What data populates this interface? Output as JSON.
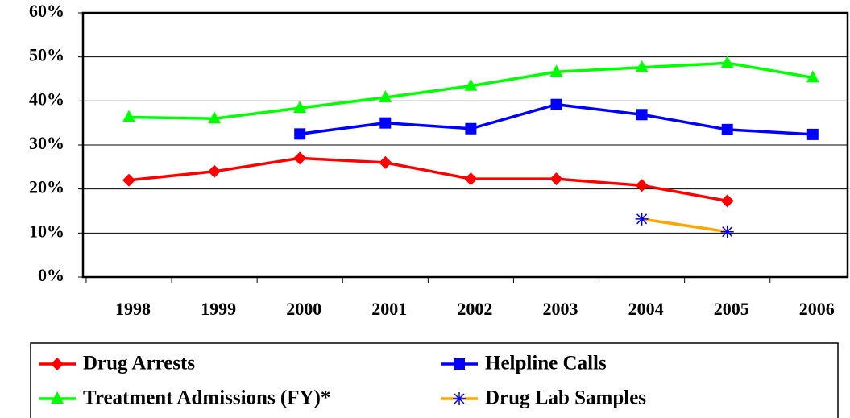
{
  "chart_data": {
    "type": "line",
    "categories": [
      "1998",
      "1999",
      "2000",
      "2001",
      "2002",
      "2003",
      "2004",
      "2005",
      "2006"
    ],
    "series": [
      {
        "name": "Drug Arrests",
        "color": "#ff0000",
        "marker": "diamond",
        "marker_color": "#ff0000",
        "values": [
          22,
          24,
          27,
          26,
          22.3,
          22.3,
          20.8,
          17.3,
          null
        ]
      },
      {
        "name": "Helpline Calls",
        "color": "#0000ff",
        "marker": "square",
        "marker_color": "#0000ff",
        "values": [
          null,
          null,
          32.5,
          35,
          33.7,
          39.2,
          36.9,
          33.5,
          32.4
        ]
      },
      {
        "name": "Treatment Admissions (FY)*",
        "color": "#00ff00",
        "marker": "triangle",
        "marker_color": "#00ff00",
        "values": [
          36.3,
          36,
          38.4,
          40.8,
          43.4,
          46.6,
          47.6,
          48.6,
          45.3
        ]
      },
      {
        "name": "Drug Lab Samples",
        "color": "#ffa500",
        "marker": "star",
        "marker_color": "#0000ff",
        "values": [
          null,
          null,
          null,
          null,
          null,
          null,
          13.2,
          10.3,
          null
        ]
      }
    ],
    "ylim": [
      0,
      60
    ],
    "yticks": [
      {
        "value": 0,
        "label": "0%"
      },
      {
        "value": 10,
        "label": "10%"
      },
      {
        "value": 20,
        "label": "20%"
      },
      {
        "value": 30,
        "label": "30%"
      },
      {
        "value": 40,
        "label": "40%"
      },
      {
        "value": 50,
        "label": "50%"
      },
      {
        "value": 60,
        "label": "60%"
      }
    ],
    "grid": true,
    "legend": "bottom"
  }
}
